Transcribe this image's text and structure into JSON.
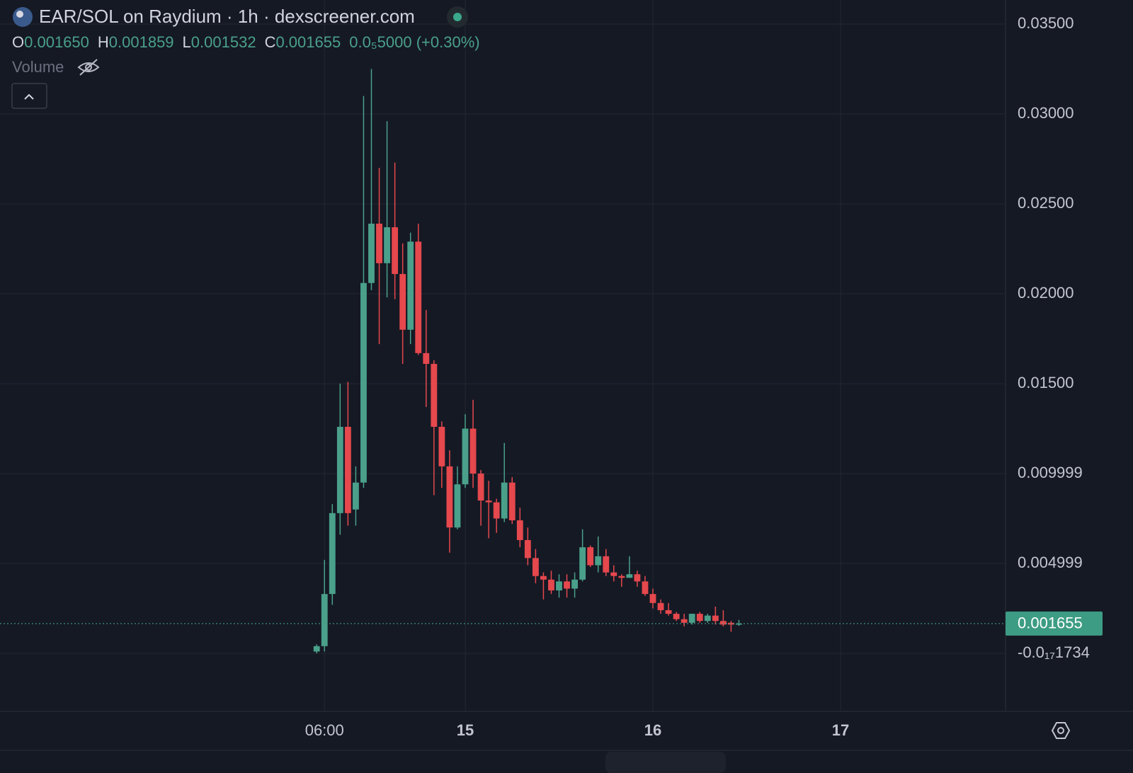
{
  "header": {
    "title": "EAR/SOL on Raydium · 1h · dexscreener.com",
    "ohlc": [
      {
        "key": "O",
        "text": "0.001650"
      },
      {
        "key": "H",
        "text": "0.001859"
      },
      {
        "key": "L",
        "text": "0.001532"
      },
      {
        "key": "C",
        "text": "0.001655"
      }
    ],
    "change": "0.0₅5000 (+0.30%)",
    "volume": "Volume"
  },
  "chart_data": {
    "type": "candlestick",
    "up_color": "#4aa08a",
    "down_color": "#e5484d",
    "grid": true,
    "x": [
      5,
      6,
      7,
      8,
      9,
      10,
      11,
      12,
      13,
      14,
      15,
      16,
      17,
      18,
      19,
      20,
      21,
      22,
      23,
      24,
      25,
      26,
      27,
      28,
      29,
      30,
      31,
      32,
      33,
      34,
      35,
      36,
      37,
      38,
      39,
      40,
      41,
      42,
      43,
      44,
      45,
      46,
      47,
      48,
      49,
      50,
      51,
      52,
      53,
      54,
      55,
      56,
      57,
      58,
      59
    ],
    "open": [
      0.0001,
      0.0004,
      0.0033,
      0.0078,
      0.0126,
      0.008,
      0.0095,
      0.0206,
      0.0239,
      0.0217,
      0.0237,
      0.0211,
      0.018,
      0.0229,
      0.0167,
      0.0161,
      0.0126,
      0.0104,
      0.007,
      0.0094,
      0.0125,
      0.01,
      0.0085,
      0.0084,
      0.0075,
      0.0095,
      0.0074,
      0.0063,
      0.0053,
      0.0043,
      0.0041,
      0.0035,
      0.004,
      0.0036,
      0.0041,
      0.0059,
      0.0049,
      0.0054,
      0.0045,
      0.0043,
      0.0042,
      0.0044,
      0.004,
      0.0033,
      0.0028,
      0.0024,
      0.0022,
      0.0019,
      0.0017,
      0.0022,
      0.0018,
      0.0021,
      0.0018,
      0.0017,
      0.00165
    ],
    "high": [
      0.0005,
      0.0052,
      0.0083,
      0.015,
      0.0151,
      0.0104,
      0.031,
      0.0325,
      0.027,
      0.0296,
      0.0273,
      0.0228,
      0.0234,
      0.0239,
      0.0191,
      0.0163,
      0.0129,
      0.0113,
      0.0104,
      0.0133,
      0.0141,
      0.0102,
      0.0096,
      0.0086,
      0.0117,
      0.0098,
      0.0081,
      0.007,
      0.0058,
      0.0045,
      0.0046,
      0.0044,
      0.0044,
      0.0045,
      0.0069,
      0.006,
      0.0065,
      0.0058,
      0.0049,
      0.0044,
      0.0054,
      0.0046,
      0.0043,
      0.0036,
      0.003,
      0.0028,
      0.0023,
      0.0022,
      0.0022,
      0.0023,
      0.0022,
      0.0026,
      0.0024,
      0.0018,
      0.001859
    ],
    "low": [
      0.0,
      0.0001,
      0.0027,
      0.0066,
      0.0071,
      0.0071,
      0.0092,
      0.0202,
      0.0172,
      0.0198,
      0.0197,
      0.0161,
      0.0172,
      0.0166,
      0.0137,
      0.0088,
      0.0092,
      0.0056,
      0.0069,
      0.0092,
      0.0092,
      0.0071,
      0.0064,
      0.0067,
      0.0073,
      0.0072,
      0.0059,
      0.0049,
      0.0039,
      0.003,
      0.0033,
      0.0031,
      0.0031,
      0.0031,
      0.004,
      0.0048,
      0.0045,
      0.0043,
      0.004,
      0.0037,
      0.0042,
      0.0037,
      0.0032,
      0.0025,
      0.0022,
      0.0021,
      0.0018,
      0.0015,
      0.0016,
      0.0017,
      0.0017,
      0.0016,
      0.0015,
      0.0012,
      0.001532
    ],
    "close": [
      0.0004,
      0.0033,
      0.0078,
      0.0126,
      0.0078,
      0.0095,
      0.0206,
      0.0239,
      0.0217,
      0.0237,
      0.0211,
      0.018,
      0.0229,
      0.0167,
      0.0161,
      0.0126,
      0.0104,
      0.007,
      0.0094,
      0.0125,
      0.01,
      0.0085,
      0.0084,
      0.0075,
      0.0095,
      0.0074,
      0.0063,
      0.0053,
      0.0043,
      0.0041,
      0.0035,
      0.004,
      0.0036,
      0.0041,
      0.0059,
      0.0049,
      0.0054,
      0.0045,
      0.0043,
      0.0042,
      0.0044,
      0.004,
      0.0033,
      0.0028,
      0.0024,
      0.0022,
      0.0019,
      0.0017,
      0.0022,
      0.0018,
      0.0021,
      0.0018,
      0.0016,
      0.0016,
      0.001655
    ],
    "xlim": [
      -35.5,
      93.1
    ],
    "xticks": [
      {
        "value": 6,
        "label": "06:00"
      },
      {
        "value": 24,
        "label": "15"
      },
      {
        "value": 48,
        "label": "16"
      },
      {
        "value": 72,
        "label": "17"
      }
    ],
    "ylim": [
      -0.00323,
      0.03634
    ],
    "yticks": [
      {
        "value": -1.734e-18,
        "label": "-0.0₁₇1734"
      },
      {
        "value": 0.004999,
        "label": "0.004999"
      },
      {
        "value": 0.009999,
        "label": "0.009999"
      },
      {
        "value": 0.015,
        "label": "0.01500"
      },
      {
        "value": 0.02,
        "label": "0.02000"
      },
      {
        "value": 0.025,
        "label": "0.02500"
      },
      {
        "value": 0.03,
        "label": "0.03000"
      },
      {
        "value": 0.035,
        "label": "0.03500"
      }
    ],
    "last_price": {
      "value": 0.001655,
      "label": "0.001655",
      "color": "#3d9c84"
    }
  }
}
